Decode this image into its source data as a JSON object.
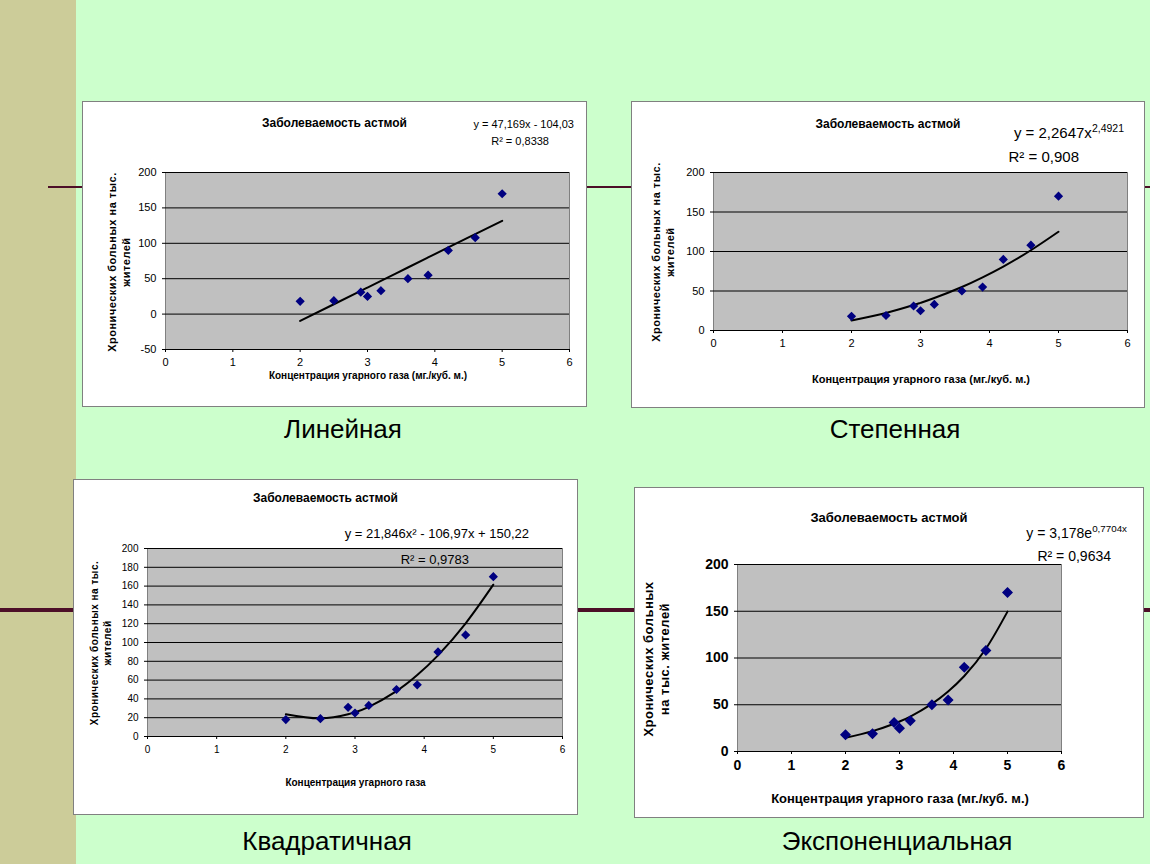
{
  "chart_data": [
    {
      "type": "scatter",
      "title": "Заболеваемость астмой",
      "caption": "Линейная",
      "equation": "y = 47,169x - 104,03",
      "r2": "R² = 0,8338",
      "xlabel": "Концентрация угарного газа (мг./куб. м.)",
      "ylabel": "Хронических больных на тыс. жителей",
      "x": [
        2,
        2.5,
        2.9,
        3,
        3.2,
        3.6,
        3.9,
        4.2,
        4.6,
        5
      ],
      "series": [
        {
          "type": "scatter",
          "color": "#000080",
          "marker": "diamond",
          "values": [
            18,
            19,
            31,
            25,
            33,
            50,
            55,
            90,
            108,
            170
          ]
        },
        {
          "type": "line",
          "color": "#000000",
          "line_style": "solid",
          "values": [
            -9.7,
            13.9,
            32.8,
            37.5,
            46.9,
            65.8,
            80.0,
            94.1,
            113.0,
            131.8
          ]
        }
      ],
      "xlim": [
        0,
        6
      ],
      "xticks": [
        0,
        1,
        2,
        3,
        4,
        5,
        6
      ],
      "ylim": [
        -50,
        200
      ],
      "yticks": [
        -50,
        0,
        50,
        100,
        150,
        200
      ],
      "grid": true
    },
    {
      "type": "scatter",
      "title": "Заболеваемость астмой",
      "caption": "Степенная",
      "equation": "y = 2,2647x",
      "equation_exponent": "2,4921",
      "r2": "R² = 0,908",
      "xlabel": "Концентрация угарного газа (мг./куб. м.)",
      "ylabel": "Хронических больных на тыс. жителей",
      "x": [
        2,
        2.5,
        2.9,
        3,
        3.2,
        3.6,
        3.9,
        4.2,
        4.6,
        5
      ],
      "series": [
        {
          "type": "scatter",
          "color": "#000080",
          "marker": "diamond",
          "values": [
            18,
            19,
            31,
            25,
            33,
            50,
            55,
            90,
            108,
            170
          ]
        },
        {
          "type": "line",
          "color": "#000000",
          "line_style": "solid",
          "values": [
            12.7,
            22.2,
            32.2,
            35.0,
            41.1,
            55.1,
            67.3,
            80.9,
            101.6,
            125.0
          ]
        }
      ],
      "xlim": [
        0,
        6
      ],
      "xticks": [
        0,
        1,
        2,
        3,
        4,
        5,
        6
      ],
      "ylim": [
        0,
        200
      ],
      "yticks": [
        0,
        50,
        100,
        150,
        200
      ],
      "grid": true
    },
    {
      "type": "scatter",
      "title": "Заболеваемость астмой",
      "caption": "Квадратичная",
      "equation": "y = 21,846x² - 106,97x + 150,22",
      "r2": "R² = 0,9783",
      "xlabel": "Концентрация угарного газа",
      "ylabel": "Хронических больных на тыс. жителей",
      "x": [
        2,
        2.5,
        2.9,
        3,
        3.2,
        3.6,
        3.9,
        4.2,
        4.6,
        5
      ],
      "series": [
        {
          "type": "scatter",
          "color": "#000080",
          "marker": "diamond",
          "values": [
            18,
            19,
            31,
            25,
            33,
            50,
            55,
            90,
            108,
            170
          ]
        },
        {
          "type": "line",
          "color": "#000000",
          "line_style": "solid",
          "values": [
            23.7,
            19.3,
            23.7,
            25.9,
            31.6,
            48.3,
            65.3,
            86.3,
            120.4,
            161.5
          ]
        }
      ],
      "xlim": [
        0,
        6
      ],
      "xticks": [
        0,
        1,
        2,
        3,
        4,
        5,
        6
      ],
      "ylim": [
        0,
        200
      ],
      "yticks": [
        0,
        20,
        40,
        60,
        80,
        100,
        120,
        140,
        160,
        180,
        200
      ],
      "grid": true
    },
    {
      "type": "scatter",
      "title": "Заболеваемость астмой",
      "caption": "Экспоненциальная",
      "equation": "y = 3,178e",
      "equation_exponent": "0,7704x",
      "r2": "R² = 0,9634",
      "xlabel": "Концентрация угарного газа (мг./куб. м.)",
      "ylabel": "Хронических больных на тыс. жителей",
      "x": [
        2,
        2.5,
        2.9,
        3,
        3.2,
        3.6,
        3.9,
        4.2,
        4.6,
        5
      ],
      "series": [
        {
          "type": "scatter",
          "color": "#000080",
          "marker": "diamond",
          "values": [
            18,
            19,
            31,
            25,
            33,
            50,
            55,
            90,
            108,
            170
          ]
        },
        {
          "type": "line",
          "color": "#000000",
          "line_style": "solid",
          "values": [
            14.8,
            21.8,
            29.7,
            32.1,
            37.4,
            50.9,
            64.1,
            80.8,
            109.9,
            149.6
          ]
        }
      ],
      "xlim": [
        0,
        6
      ],
      "xticks": [
        0,
        1,
        2,
        3,
        4,
        5,
        6
      ],
      "ylim": [
        0,
        200
      ],
      "yticks": [
        0,
        50,
        100,
        150,
        200
      ],
      "grid": true
    }
  ]
}
